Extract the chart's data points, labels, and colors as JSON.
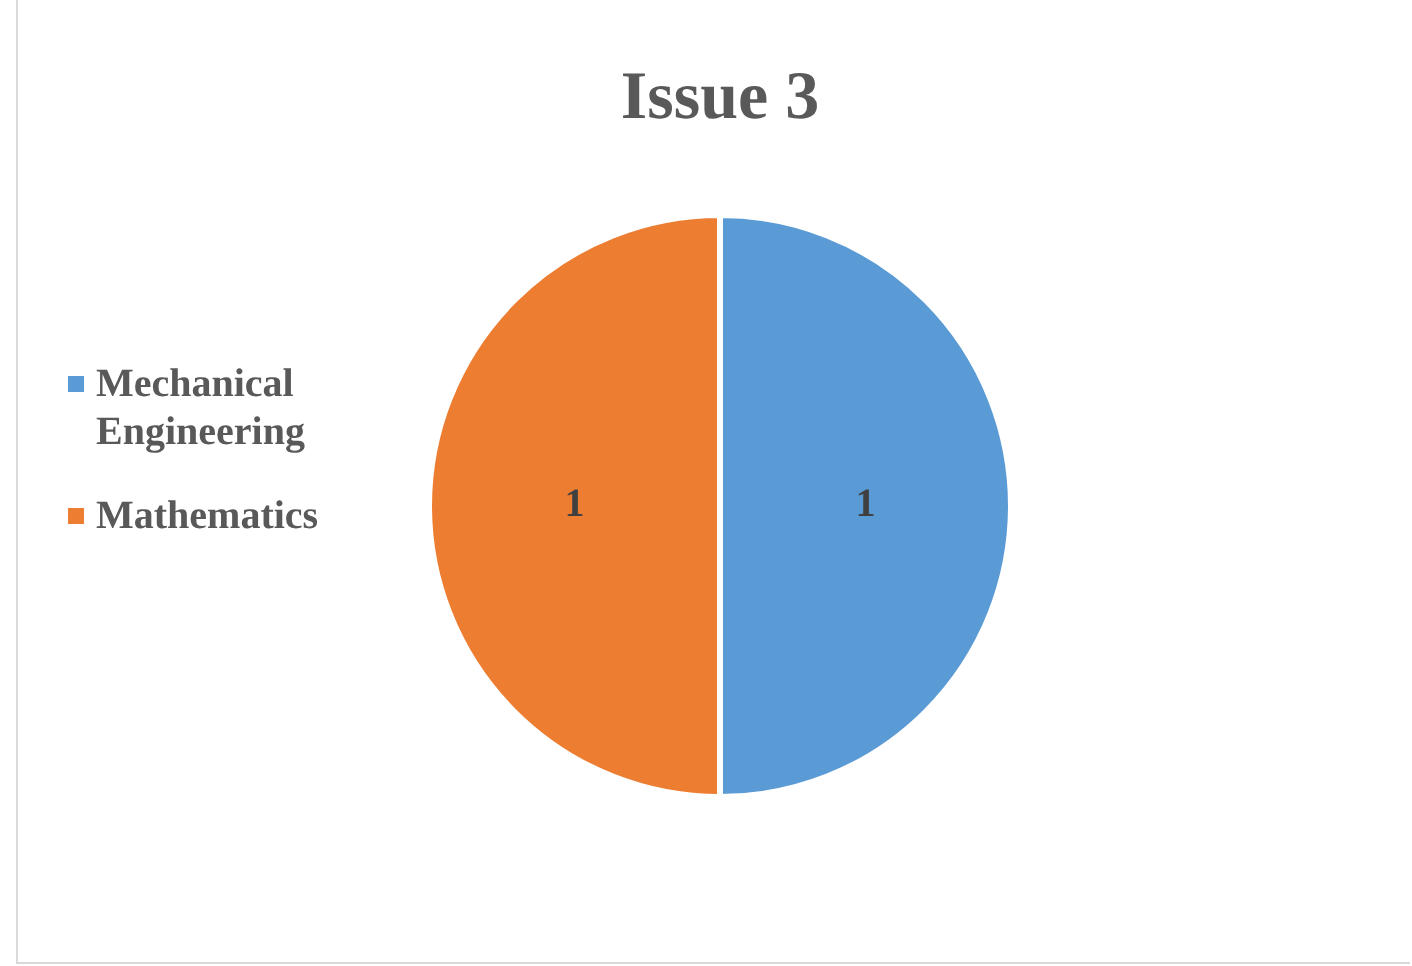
{
  "chart_data": {
    "type": "pie",
    "title": "Issue 3",
    "categories": [
      "Mechanical Engineering",
      "Mathematics"
    ],
    "values": [
      1,
      1
    ],
    "colors": [
      "#5b9bd5",
      "#ed7d31"
    ],
    "data_labels": true,
    "legend": "left"
  }
}
